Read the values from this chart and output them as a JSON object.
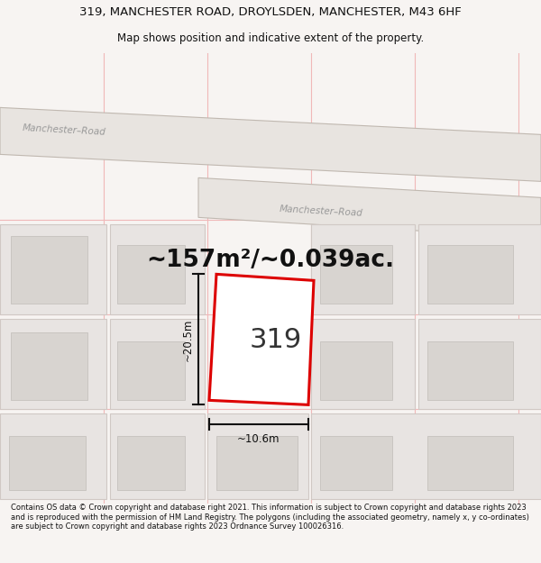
{
  "title_line1": "319, MANCHESTER ROAD, DROYLSDEN, MANCHESTER, M43 6HF",
  "title_line2": "Map shows position and indicative extent of the property.",
  "area_text": "~157m²/~0.039ac.",
  "label_number": "319",
  "dim_height": "~20.5m",
  "dim_width": "~10.6m",
  "road_label1": "Manchester–Road",
  "road_label2": "Manchester–Road",
  "footer_text": "Contains OS data © Crown copyright and database right 2021. This information is subject to Crown copyright and database rights 2023 and is reproduced with the permission of HM Land Registry. The polygons (including the associated geometry, namely x, y co-ordinates) are subject to Crown copyright and database rights 2023 Ordnance Survey 100026316.",
  "bg_color": "#f7f4f2",
  "map_bg": "#f7f4f2",
  "plot_fill": "#ffffff",
  "plot_edge": "#dd0000",
  "dim_line_color": "#111111",
  "grid_line_color": "#f0b8b8",
  "road_label_color": "#999999",
  "title_color": "#111111",
  "area_color": "#111111",
  "footer_color": "#111111",
  "road_fill": "#e8e4e0",
  "road_edge": "#c0b8b0",
  "parcel_fill": "#e8e4e2",
  "parcel_edge": "#d0c8c4",
  "building_fill": "#d8d4d0",
  "building_edge": "#c0bcb8",
  "fig_width": 6.0,
  "fig_height": 6.25
}
